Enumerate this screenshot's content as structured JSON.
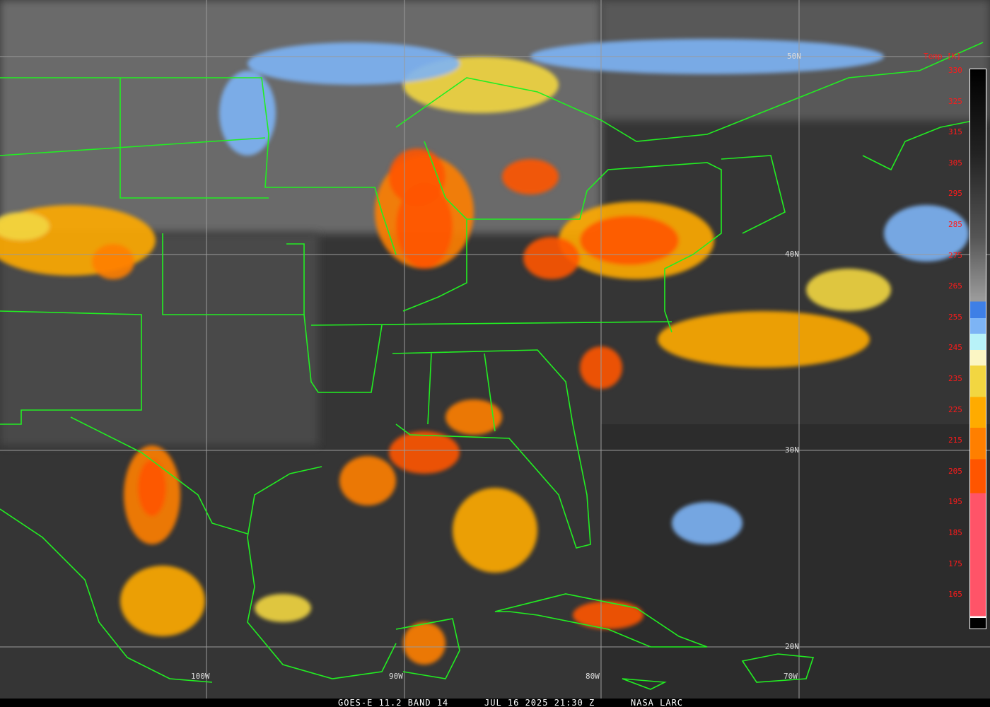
{
  "footer": {
    "product": "GOES-E 11.2 BAND 14",
    "datetime": "JUL 16 2025 21:30 Z",
    "credit": "NASA LARC"
  },
  "colorbar": {
    "title": "Temp [K]",
    "ticks": [
      "330",
      "325",
      "315",
      "305",
      "295",
      "285",
      "275",
      "265",
      "255",
      "245",
      "235",
      "225",
      "215",
      "205",
      "195",
      "185",
      "175",
      "165"
    ],
    "colors": {
      "cold_pink": "#ff5468",
      "red_orange": "#ff5500",
      "orange": "#ff7f00",
      "amber": "#ffab00",
      "yellow": "#f2d641",
      "cream": "#fbf6c4",
      "cyan": "#b8f2f8",
      "light_blue": "#7db4f5",
      "blue": "#3e7fe6",
      "borders": "#22ee22"
    }
  },
  "grid": {
    "latitudes": [
      "50N",
      "40N",
      "30N",
      "20N"
    ],
    "longitudes": [
      "100W",
      "90W",
      "80W",
      "70W"
    ]
  }
}
